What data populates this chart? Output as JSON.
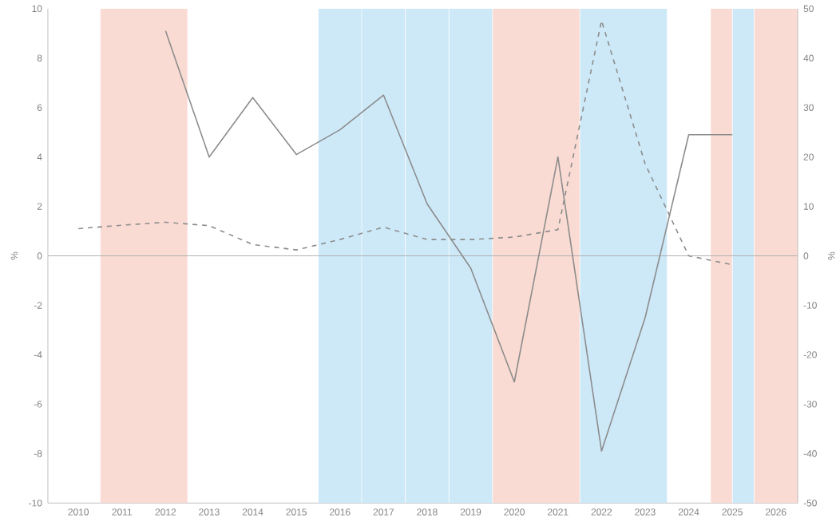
{
  "chart_data": {
    "type": "line",
    "ylabel": "%",
    "y2label": "%",
    "xlim": [
      2009.3,
      2026.5
    ],
    "xticks": [
      2010,
      2011,
      2012,
      2013,
      2014,
      2015,
      2016,
      2017,
      2018,
      2019,
      2020,
      2021,
      2022,
      2023,
      2024,
      2025,
      2026
    ],
    "ylim": [
      -10,
      10
    ],
    "yticks": [
      -10,
      -8,
      -6,
      -4,
      -2,
      0,
      2,
      4,
      6,
      8,
      10
    ],
    "y2lim": [
      -50,
      50
    ],
    "y2ticks": [
      -50,
      -40,
      -30,
      -20,
      -10,
      0,
      10,
      20,
      30,
      40,
      50
    ],
    "grid": false,
    "marker": "none",
    "series": [
      {
        "color": "#8c8c8c",
        "line_style": "solid",
        "x": [
          2012,
          2013,
          2014,
          2015,
          2016,
          2017,
          2018,
          2019,
          2020,
          2021,
          2022,
          2023,
          2024,
          2025
        ],
        "values": [
          9.1,
          4.0,
          6.4,
          4.1,
          5.1,
          6.5,
          2.1,
          -0.5,
          -5.1,
          4.0,
          -7.9,
          -2.5,
          4.9,
          4.9
        ]
      },
      {
        "color": "#8c8c8c",
        "line_style": "dashed",
        "axis": "y2",
        "x": [
          2010,
          2011,
          2012,
          2013,
          2014,
          2015,
          2016,
          2017,
          2018,
          2019,
          2020,
          2021,
          2022,
          2023,
          2024,
          2025
        ],
        "values": [
          5.5,
          6.2,
          6.8,
          6.1,
          2.3,
          1.2,
          3.3,
          5.8,
          3.3,
          3.3,
          3.8,
          5.3,
          47.6,
          18.6,
          0,
          -1.8
        ]
      }
    ],
    "ref_lines": [
      {
        "axis": "y",
        "value": 0,
        "color": "#b0b0b0"
      }
    ],
    "bands": [
      {
        "axis": "x",
        "from": 2010.5,
        "to": 2012.5,
        "color": "#fadbd3"
      },
      {
        "axis": "x",
        "from": 2015.5,
        "to": 2016.5,
        "color": "#cde9f8"
      },
      {
        "axis": "x",
        "from": 2016.5,
        "to": 2017.5,
        "color": "#cde9f8"
      },
      {
        "axis": "x",
        "from": 2017.5,
        "to": 2018.5,
        "color": "#cde9f8"
      },
      {
        "axis": "x",
        "from": 2018.5,
        "to": 2019.5,
        "color": "#cde9f8"
      },
      {
        "axis": "x",
        "from": 2019.5,
        "to": 2021.5,
        "color": "#fadbd3"
      },
      {
        "axis": "x",
        "from": 2021.5,
        "to": 2023.5,
        "color": "#cde9f8"
      },
      {
        "axis": "x",
        "from": 2024.5,
        "to": 2025.0,
        "color": "#fadbd3"
      },
      {
        "axis": "x",
        "from": 2025.0,
        "to": 2025.5,
        "color": "#cde9f8"
      },
      {
        "axis": "x",
        "from": 2025.5,
        "to": 2026.5,
        "color": "#fadbd3"
      }
    ]
  }
}
